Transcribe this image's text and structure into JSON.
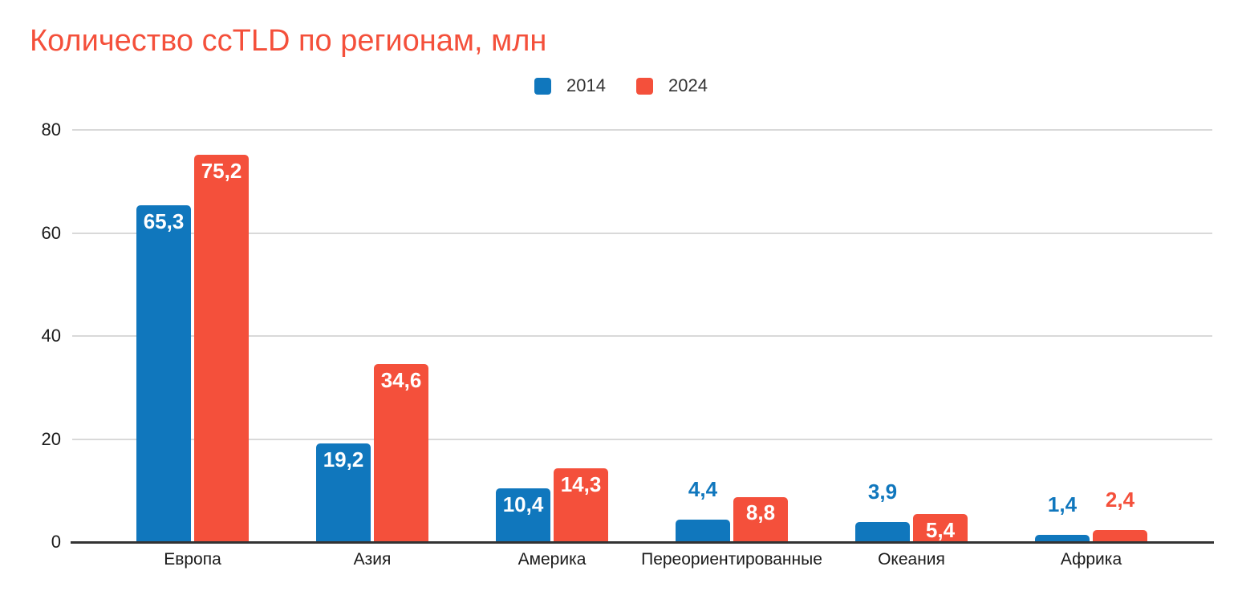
{
  "chart_data": {
    "type": "bar",
    "title": "Количество ccTLD по регионам, млн",
    "title_color": "#f4503b",
    "categories": [
      "Европа",
      "Азия",
      "Америка",
      "Переориентированные",
      "Океания",
      "Африка"
    ],
    "series": [
      {
        "name": "2014",
        "color": "#1077bd",
        "values": [
          65.3,
          19.2,
          10.4,
          4.4,
          3.9,
          1.4
        ]
      },
      {
        "name": "2024",
        "color": "#f4503b",
        "values": [
          75.2,
          34.6,
          14.3,
          8.8,
          5.4,
          2.4
        ]
      }
    ],
    "data_labels": {
      "decimal_separator": ",",
      "inside_color": "#ffffff"
    },
    "y_axis": {
      "ticks": [
        0,
        20,
        40,
        60,
        80
      ],
      "min": 0,
      "max": 80
    },
    "x_axis_label_color": "#1a1a1a",
    "grid": true,
    "gridline_color": "#d9d9d9",
    "baseline_color": "#333333",
    "legend_position": "top-center",
    "background": "#ffffff"
  }
}
